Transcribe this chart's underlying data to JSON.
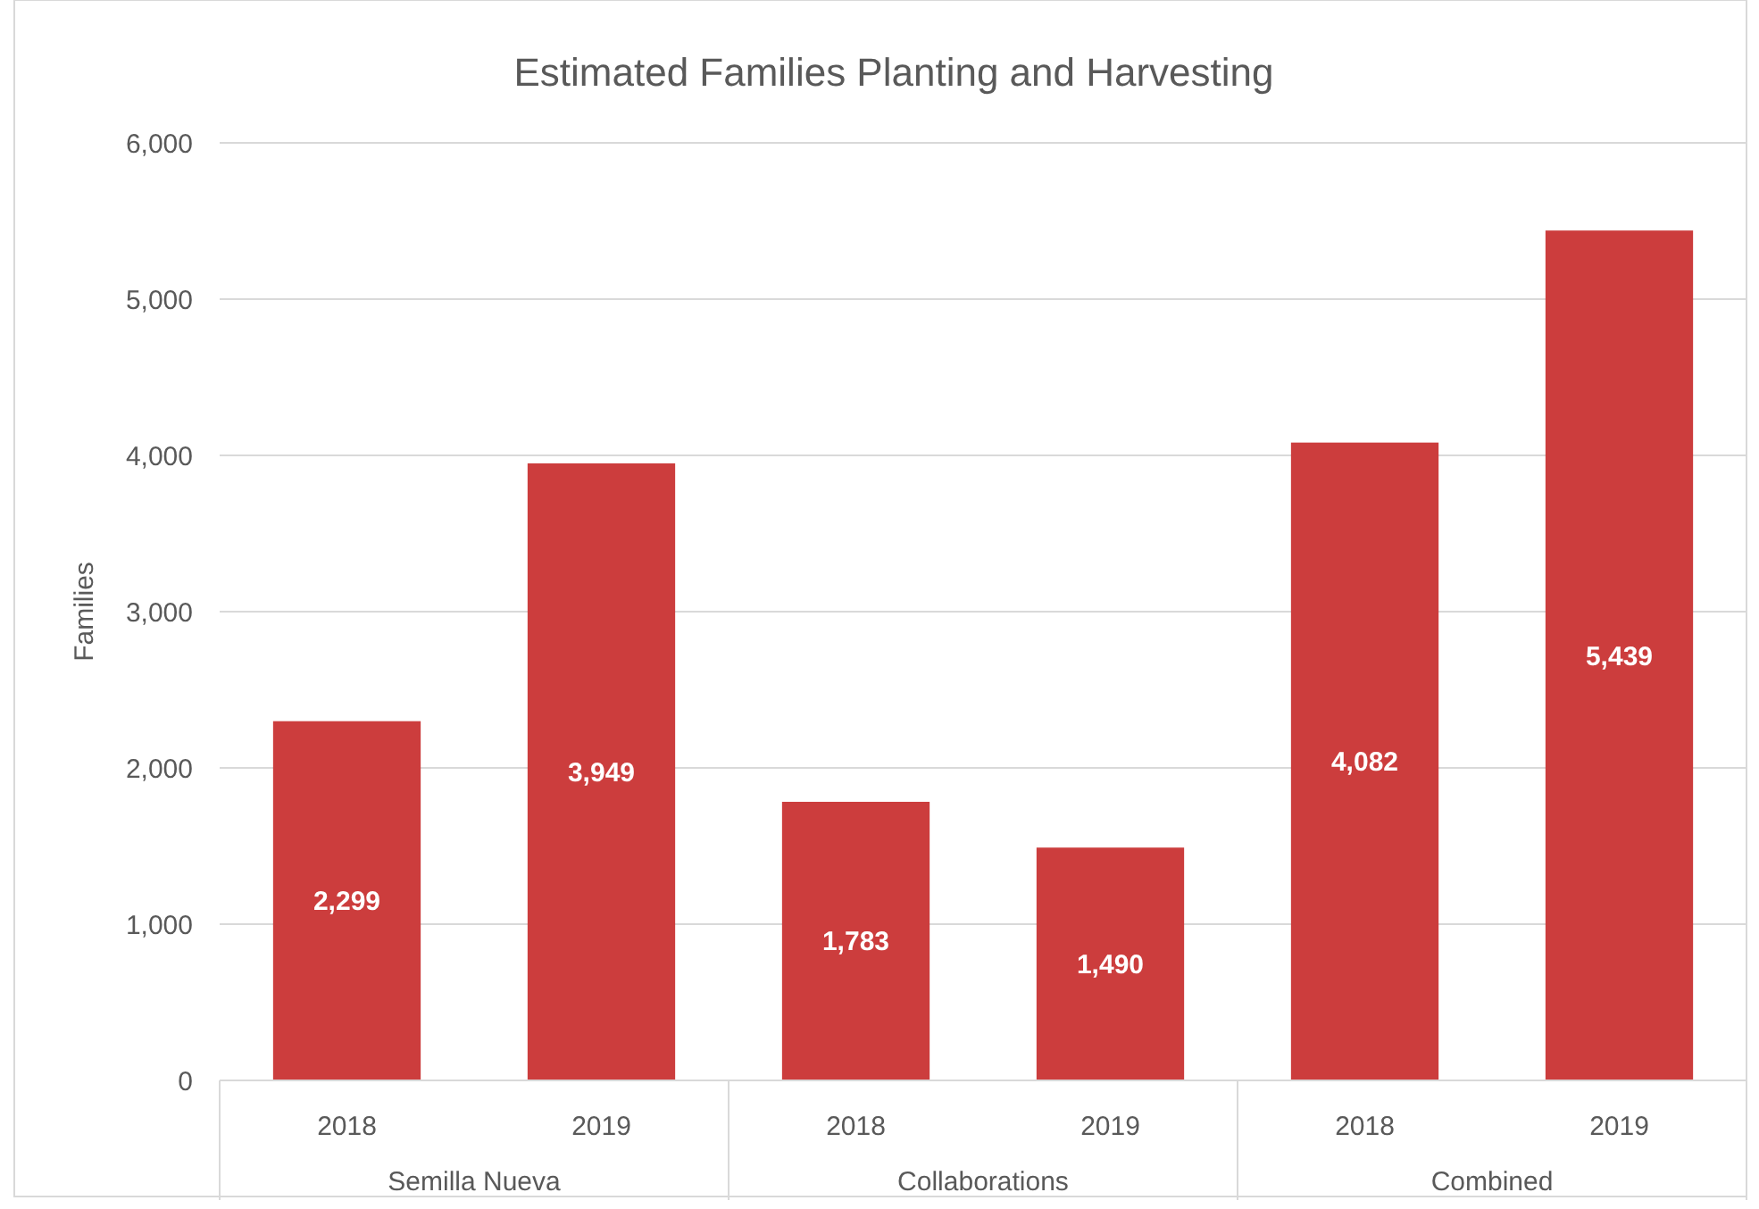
{
  "chart_data": {
    "type": "bar",
    "title": "Estimated Families Planting and Harvesting",
    "ylabel": "Families",
    "categories": [
      "2018",
      "2019",
      "2018",
      "2019",
      "2018",
      "2019"
    ],
    "values": [
      2299,
      3949,
      1783,
      1490,
      4082,
      5439
    ],
    "color": "#cc3d3d",
    "ylim": [
      0,
      6000
    ],
    "yticks": [
      0,
      {
        "value": 1000,
        "label": "1,000"
      },
      {
        "value": 2000,
        "label": "2,000"
      },
      {
        "value": 3000,
        "label": "3,000"
      },
      {
        "value": 4000,
        "label": "4,000"
      },
      {
        "value": 5000,
        "label": "5,000"
      },
      {
        "value": 6000,
        "label": "6,000"
      }
    ],
    "value_labels": [
      "2,299",
      "3,949",
      "1,783",
      "1,490",
      "4,082",
      "5,439"
    ],
    "grid": "y",
    "annotations": [
      "Semilla Nueva",
      "Collaborations",
      "Combined"
    ]
  }
}
